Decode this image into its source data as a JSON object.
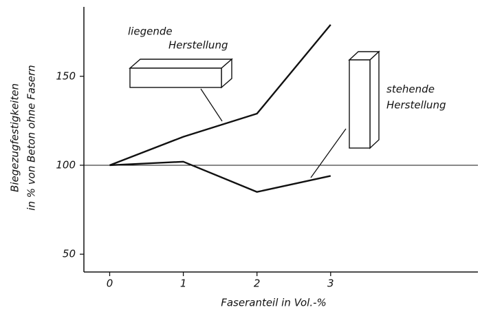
{
  "chart_data": {
    "type": "line",
    "x_label": "Faseranteil in Vol.-%",
    "y_label": [
      "Biegezugfestigkeiten",
      "in % von Beton ohne Fasern"
    ],
    "x": [
      0,
      1,
      2,
      3
    ],
    "series": [
      {
        "color": "#111111",
        "values": [
          100,
          116,
          129,
          179
        ]
      },
      {
        "color": "#111111",
        "values": [
          100,
          102,
          85,
          94
        ]
      }
    ],
    "annotations": [
      {
        "lines": [
          "liegende",
          "Herstellung"
        ]
      },
      {
        "lines": [
          "stehende",
          "Herstellung"
        ]
      }
    ],
    "reference_line": 100,
    "xlim": [
      -0.35,
      5
    ],
    "ylim": [
      40,
      189
    ],
    "xticks": [
      0,
      1,
      2,
      3
    ],
    "yticks": [
      50,
      100,
      150
    ]
  }
}
